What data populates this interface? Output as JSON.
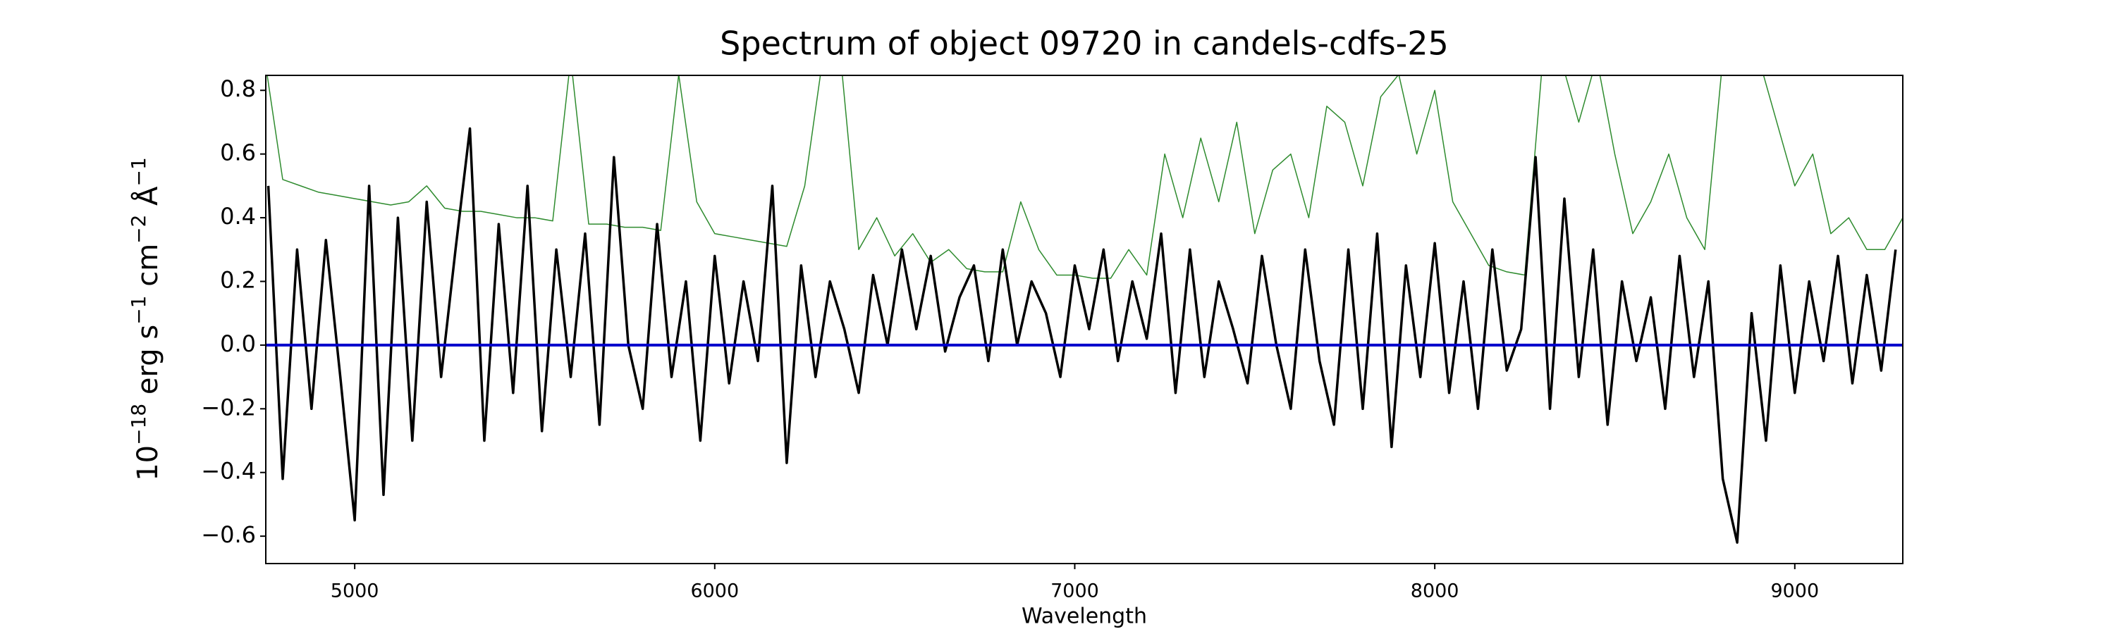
{
  "chart_data": {
    "type": "line",
    "title": "Spectrum of object 09720 in candels-cdfs-25",
    "x_label": "Wavelength",
    "y_label": [
      "10",
      "−18",
      " erg s",
      "−1",
      " cm",
      "−2",
      " Å",
      "−1"
    ],
    "xlim": [
      4753,
      9300
    ],
    "ylim": [
      -0.686,
      0.847
    ],
    "xticks": [
      5000,
      6000,
      7000,
      8000,
      9000
    ],
    "yticks": [
      {
        "value": -0.6,
        "label": "−0.6"
      },
      {
        "value": -0.4,
        "label": "−0.4"
      },
      {
        "value": -0.2,
        "label": "−0.2"
      },
      {
        "value": 0,
        "label": "0.0"
      },
      0.2,
      0.4,
      0.6,
      0.8
    ],
    "series": [
      {
        "color": "#2e8b2e",
        "width": 1.5,
        "x": [
          4750,
          4800,
          4850,
          4900,
          4950,
          5000,
          5050,
          5100,
          5150,
          5200,
          5250,
          5300,
          5350,
          5400,
          5450,
          5500,
          5550,
          5600,
          5650,
          5700,
          5750,
          5800,
          5850,
          5900,
          5950,
          6000,
          6050,
          6100,
          6150,
          6200,
          6250,
          6300,
          6350,
          6400,
          6450,
          6500,
          6550,
          6600,
          6650,
          6700,
          6750,
          6800,
          6850,
          6900,
          6950,
          7000,
          7050,
          7100,
          7150,
          7200,
          7250,
          7300,
          7350,
          7400,
          7450,
          7500,
          7550,
          7600,
          7650,
          7700,
          7750,
          7800,
          7850,
          7900,
          7950,
          8000,
          8050,
          8100,
          8150,
          8200,
          8250,
          8300,
          8350,
          8400,
          8450,
          8500,
          8550,
          8600,
          8650,
          8700,
          8750,
          8800,
          8850,
          8900,
          8950,
          9000,
          9050,
          9100,
          9150,
          9200,
          9250,
          9300
        ],
        "values": [
          0.9,
          0.52,
          0.5,
          0.48,
          0.47,
          0.46,
          0.45,
          0.44,
          0.45,
          0.5,
          0.43,
          0.42,
          0.42,
          0.41,
          0.4,
          0.4,
          0.39,
          0.9,
          0.38,
          0.38,
          0.37,
          0.37,
          0.36,
          0.85,
          0.45,
          0.35,
          0.34,
          0.33,
          0.32,
          0.31,
          0.5,
          0.9,
          0.9,
          0.3,
          0.4,
          0.28,
          0.35,
          0.26,
          0.3,
          0.24,
          0.23,
          0.23,
          0.45,
          0.3,
          0.22,
          0.22,
          0.21,
          0.21,
          0.3,
          0.22,
          0.6,
          0.4,
          0.65,
          0.45,
          0.7,
          0.35,
          0.55,
          0.6,
          0.4,
          0.75,
          0.7,
          0.5,
          0.78,
          0.85,
          0.6,
          0.8,
          0.45,
          0.35,
          0.25,
          0.23,
          0.22,
          0.9,
          0.9,
          0.7,
          0.9,
          0.6,
          0.35,
          0.45,
          0.6,
          0.4,
          0.3,
          0.9,
          0.9,
          0.9,
          0.7,
          0.5,
          0.6,
          0.35,
          0.4,
          0.3,
          0.3,
          0.4
        ]
      },
      {
        "color": "#000000",
        "width": 3.5,
        "x": [
          4760,
          4800,
          4840,
          4880,
          4920,
          4960,
          5000,
          5040,
          5080,
          5120,
          5160,
          5200,
          5240,
          5280,
          5320,
          5360,
          5400,
          5440,
          5480,
          5520,
          5560,
          5600,
          5640,
          5680,
          5720,
          5760,
          5800,
          5840,
          5880,
          5920,
          5960,
          6000,
          6040,
          6080,
          6120,
          6160,
          6200,
          6240,
          6280,
          6320,
          6360,
          6400,
          6440,
          6480,
          6520,
          6560,
          6600,
          6640,
          6680,
          6720,
          6760,
          6800,
          6840,
          6880,
          6920,
          6960,
          7000,
          7040,
          7080,
          7120,
          7160,
          7200,
          7240,
          7280,
          7320,
          7360,
          7400,
          7440,
          7480,
          7520,
          7560,
          7600,
          7640,
          7680,
          7720,
          7760,
          7800,
          7840,
          7880,
          7920,
          7960,
          8000,
          8040,
          8080,
          8120,
          8160,
          8200,
          8240,
          8280,
          8320,
          8360,
          8400,
          8440,
          8480,
          8520,
          8560,
          8600,
          8640,
          8680,
          8720,
          8760,
          8800,
          8840,
          8880,
          8920,
          8960,
          9000,
          9040,
          9080,
          9120,
          9160,
          9200,
          9240,
          9280
        ],
        "values": [
          0.5,
          -0.42,
          0.3,
          -0.2,
          0.33,
          -0.1,
          -0.55,
          0.5,
          -0.47,
          0.4,
          -0.3,
          0.45,
          -0.1,
          0.3,
          0.68,
          -0.3,
          0.38,
          -0.15,
          0.5,
          -0.27,
          0.3,
          -0.1,
          0.35,
          -0.25,
          0.59,
          0.0,
          -0.2,
          0.38,
          -0.1,
          0.2,
          -0.3,
          0.28,
          -0.12,
          0.2,
          -0.05,
          0.5,
          -0.37,
          0.25,
          -0.1,
          0.2,
          0.05,
          -0.15,
          0.22,
          0.0,
          0.3,
          0.05,
          0.28,
          -0.02,
          0.15,
          0.25,
          -0.05,
          0.3,
          0.0,
          0.2,
          0.1,
          -0.1,
          0.25,
          0.05,
          0.3,
          -0.05,
          0.2,
          0.02,
          0.35,
          -0.15,
          0.3,
          -0.1,
          0.2,
          0.05,
          -0.12,
          0.28,
          0.0,
          -0.2,
          0.3,
          -0.05,
          -0.25,
          0.3,
          -0.2,
          0.35,
          -0.32,
          0.25,
          -0.1,
          0.32,
          -0.15,
          0.2,
          -0.2,
          0.3,
          -0.08,
          0.05,
          0.59,
          -0.2,
          0.46,
          -0.1,
          0.3,
          -0.25,
          0.2,
          -0.05,
          0.15,
          -0.2,
          0.28,
          -0.1,
          0.2,
          -0.42,
          -0.62,
          0.1,
          -0.3,
          0.25,
          -0.15,
          0.2,
          -0.05,
          0.28,
          -0.12,
          0.22,
          -0.08,
          0.3
        ]
      },
      {
        "color": "#0000cc",
        "width": 4,
        "x": [
          4750,
          9300
        ],
        "values": [
          0,
          0
        ]
      }
    ]
  }
}
